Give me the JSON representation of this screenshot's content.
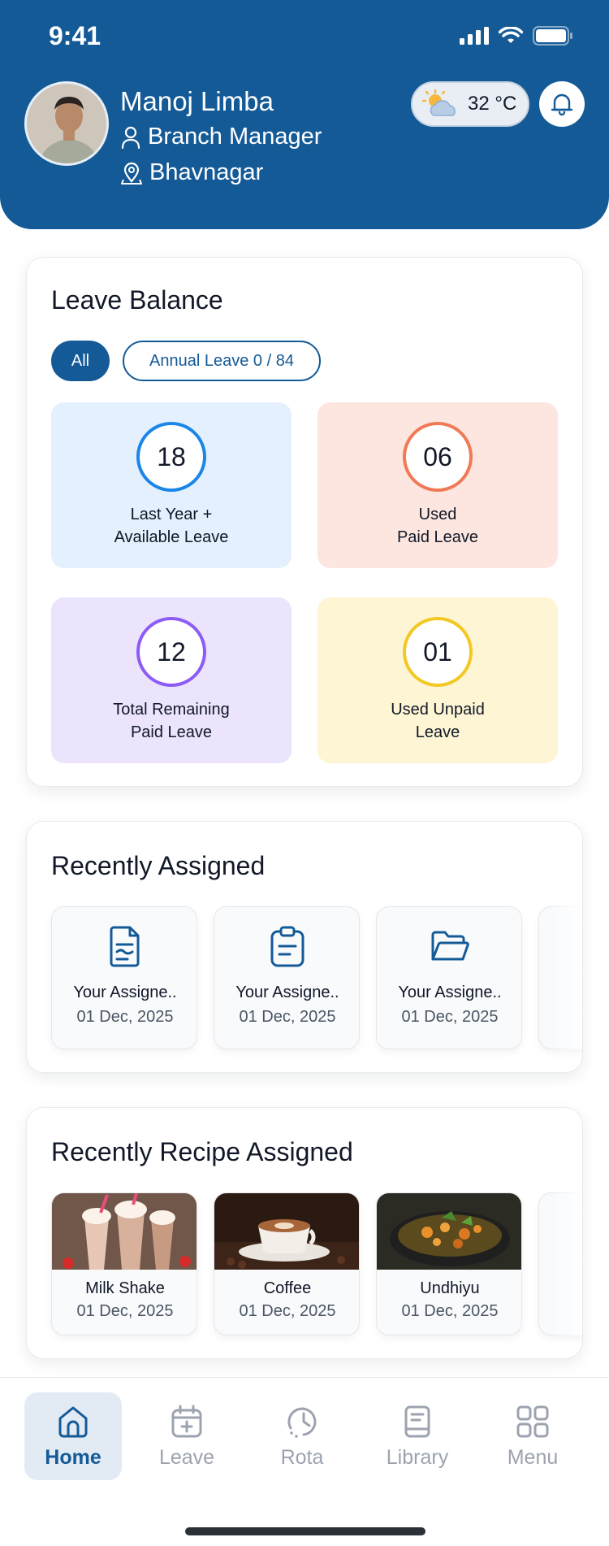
{
  "status_bar": {
    "time": "9:41"
  },
  "user": {
    "name": "Manoj Limba",
    "role": "Branch Manager",
    "location": "Bhavnagar"
  },
  "weather": {
    "temperature": "32 °C"
  },
  "leave_balance": {
    "title": "Leave Balance",
    "filters": {
      "all": "All",
      "annual": "Annual Leave 0 / 84"
    },
    "tiles": [
      {
        "value": "18",
        "label": "Last Year +\nAvailable Leave",
        "ring_color": "#1b86e8"
      },
      {
        "value": "06",
        "label": "Used\nPaid Leave",
        "ring_color": "#f07a55"
      },
      {
        "value": "12",
        "label": "Total Remaining\nPaid Leave",
        "ring_color": "#8b5cf6"
      },
      {
        "value": "01",
        "label": "Used Unpaid\nLeave",
        "ring_color": "#f2c824"
      }
    ]
  },
  "recently_assigned": {
    "title": "Recently Assigned",
    "items": [
      {
        "title": "Your Assigne..",
        "date": "01 Dec, 2025",
        "icon": "document-icon"
      },
      {
        "title": "Your Assigne..",
        "date": "01 Dec, 2025",
        "icon": "clipboard-icon"
      },
      {
        "title": "Your Assigne..",
        "date": "01 Dec, 2025",
        "icon": "folder-icon"
      }
    ]
  },
  "recently_recipe": {
    "title": "Recently Recipe Assigned",
    "items": [
      {
        "title": "Milk Shake",
        "date": "01 Dec, 2025"
      },
      {
        "title": "Coffee",
        "date": "01 Dec, 2025"
      },
      {
        "title": "Undhiyu",
        "date": "01 Dec, 2025"
      }
    ]
  },
  "nav": {
    "items": [
      {
        "label": "Home",
        "icon": "home-icon"
      },
      {
        "label": "Leave",
        "icon": "calendar-plus-icon"
      },
      {
        "label": "Rota",
        "icon": "clock-history-icon"
      },
      {
        "label": "Library",
        "icon": "book-icon"
      },
      {
        "label": "Menu",
        "icon": "grid-icon"
      }
    ]
  },
  "colors": {
    "primary": "#145a97",
    "tile_blue": "#e4f0fd",
    "tile_red": "#fde6e0",
    "tile_purple": "#ece3fc",
    "tile_yellow": "#fdf5d3"
  }
}
